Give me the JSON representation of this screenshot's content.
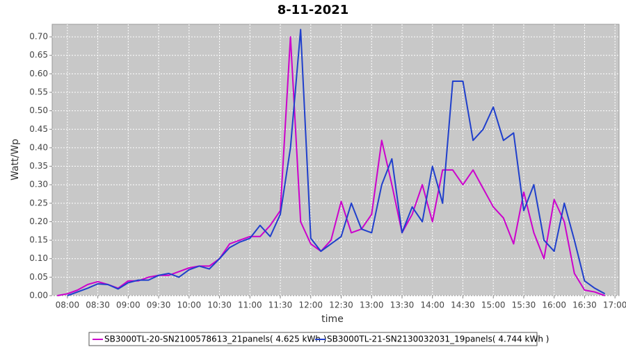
{
  "chart_data": {
    "type": "line",
    "title": "8-11-2021",
    "x_label": "time",
    "y_label": "Watt/Wp",
    "x": [
      "07:50",
      "08:00",
      "08:10",
      "08:20",
      "08:30",
      "08:40",
      "08:50",
      "09:00",
      "09:10",
      "09:20",
      "09:30",
      "09:40",
      "09:50",
      "10:00",
      "10:10",
      "10:20",
      "10:30",
      "10:40",
      "10:50",
      "11:00",
      "11:10",
      "11:20",
      "11:30",
      "11:40",
      "11:50",
      "12:00",
      "12:10",
      "12:20",
      "12:30",
      "12:40",
      "12:50",
      "13:00",
      "13:10",
      "13:20",
      "13:30",
      "13:40",
      "13:50",
      "14:00",
      "14:10",
      "14:20",
      "14:30",
      "14:40",
      "14:50",
      "15:00",
      "15:10",
      "15:20",
      "15:30",
      "15:40",
      "15:50",
      "16:00",
      "16:10",
      "16:20",
      "16:30",
      "16:40",
      "16:50"
    ],
    "series": [
      {
        "name": "SB3000TL-20-SN2100578613_21panels( 4.625 kWh )",
        "color": "#cc00cc",
        "values": [
          0,
          0.005,
          0.015,
          0.03,
          0.038,
          0.03,
          0.02,
          0.04,
          0.04,
          0.05,
          0.055,
          0.055,
          0.065,
          0.075,
          0.08,
          0.08,
          0.1,
          0.14,
          0.15,
          0.16,
          0.16,
          0.19,
          0.23,
          0.7,
          0.2,
          0.14,
          0.12,
          0.15,
          0.255,
          0.17,
          0.18,
          0.22,
          0.42,
          0.3,
          0.17,
          0.22,
          0.3,
          0.2,
          0.34,
          0.34,
          0.3,
          0.34,
          0.29,
          0.24,
          0.21,
          0.14,
          0.28,
          0.17,
          0.1,
          0.26,
          0.2,
          0.06,
          0.015,
          0.01,
          0
        ]
      },
      {
        "name": "SB3000TL-21-SN2130032031_19panels( 4.744 kWh )",
        "color": "#1f3fcc",
        "values": [
          null,
          0,
          0.01,
          0.02,
          0.032,
          0.03,
          0.018,
          0.035,
          0.042,
          0.042,
          0.055,
          0.06,
          0.05,
          0.07,
          0.08,
          0.072,
          0.1,
          0.13,
          0.145,
          0.155,
          0.19,
          0.16,
          0.22,
          0.4,
          0.72,
          0.155,
          0.12,
          0.14,
          0.16,
          0.25,
          0.18,
          0.17,
          0.3,
          0.37,
          0.17,
          0.24,
          0.2,
          0.35,
          0.25,
          0.58,
          0.58,
          0.42,
          0.45,
          0.51,
          0.42,
          0.44,
          0.23,
          0.3,
          0.15,
          0.12,
          0.25,
          0.15,
          0.04,
          0.02,
          0.005
        ]
      }
    ],
    "xlim": [
      "07:45",
      "17:04"
    ],
    "xticks": [
      "08:00",
      "08:30",
      "09:00",
      "09:30",
      "10:00",
      "10:30",
      "11:00",
      "11:30",
      "12:00",
      "12:30",
      "13:00",
      "13:30",
      "14:00",
      "14:30",
      "15:00",
      "15:30",
      "16:00",
      "16:30",
      "17:00"
    ],
    "ylim": [
      0,
      0.734
    ],
    "yticks": [
      {
        "value": 0,
        "label": "0.00"
      },
      {
        "value": 0.05,
        "label": "0.05"
      },
      {
        "value": 0.1,
        "label": "0.10"
      },
      {
        "value": 0.15,
        "label": "0.15"
      },
      {
        "value": 0.2,
        "label": "0.20"
      },
      {
        "value": 0.25,
        "label": "0.25"
      },
      {
        "value": 0.3,
        "label": "0.30"
      },
      {
        "value": 0.35,
        "label": "0.35"
      },
      {
        "value": 0.4,
        "label": "0.40"
      },
      {
        "value": 0.45,
        "label": "0.45"
      },
      {
        "value": 0.5,
        "label": "0.50"
      },
      {
        "value": 0.55,
        "label": "0.55"
      },
      {
        "value": 0.6,
        "label": "0.60"
      },
      {
        "value": 0.65,
        "label": "0.65"
      },
      {
        "value": 0.7,
        "label": "0.70"
      }
    ],
    "grid": true,
    "legend": "bottom"
  }
}
